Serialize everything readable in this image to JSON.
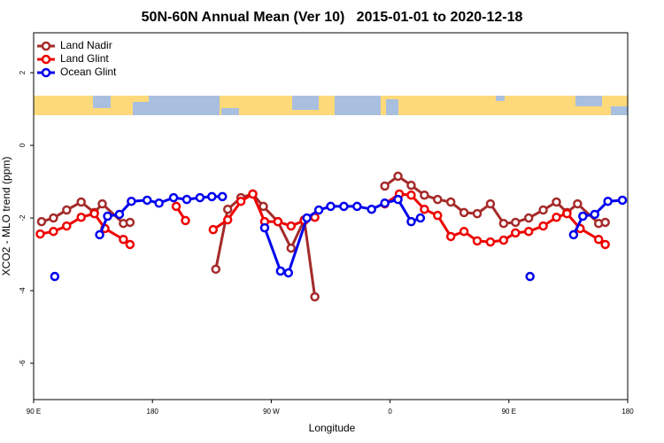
{
  "chart_data": {
    "type": "line",
    "title": "50N-60N Annual Mean (Ver 10)   2015-01-01 to 2020-12-18",
    "x_label": "Longitude",
    "y_label": "XCO2 - MLO trend (ppm)",
    "xlim": [
      90,
      540
    ],
    "ylim": [
      -7,
      3.1
    ],
    "xticks": [
      {
        "value": 90,
        "label": "90 E"
      },
      {
        "value": 180,
        "label": "180"
      },
      {
        "value": 270,
        "label": "90 W"
      },
      {
        "value": 360,
        "label": "0"
      },
      {
        "value": 450,
        "label": "90 E"
      },
      {
        "value": 540,
        "label": "180"
      }
    ],
    "yticks": [
      2,
      0,
      -2,
      -4,
      -6
    ],
    "legend": "top-left",
    "series": [
      {
        "name": "Land Nadir",
        "color": "#a52a2a",
        "x": [
          96,
          105,
          115,
          126,
          136,
          142,
          158,
          163,
          null,
          228,
          237,
          247,
          256,
          264,
          275,
          285,
          295,
          303,
          null,
          356,
          366,
          376,
          386,
          396,
          406,
          416,
          426,
          436,
          446,
          455,
          465,
          476,
          486,
          494,
          502,
          518,
          523
        ],
        "values": [
          -2.1,
          -2.0,
          -1.78,
          -1.56,
          -1.85,
          -1.61,
          -2.15,
          -2.12,
          null,
          -3.41,
          -1.76,
          -1.44,
          -1.34,
          -1.68,
          -2.1,
          -2.83,
          -2.05,
          -4.17,
          null,
          -1.12,
          -0.85,
          -1.1,
          -1.37,
          -1.49,
          -1.56,
          -1.85,
          -1.88,
          -1.61,
          -2.15,
          -2.12,
          -2.0,
          -1.78,
          -1.56,
          -1.85,
          -1.61,
          -2.15,
          -2.12
        ]
      },
      {
        "name": "Land Glint",
        "color": "#ee0000",
        "x": [
          95,
          105,
          115,
          126,
          136,
          144,
          158,
          163,
          null,
          198,
          205,
          null,
          226,
          237,
          247,
          256,
          265,
          275,
          285,
          295,
          303,
          null,
          356,
          367,
          376,
          386,
          396,
          406,
          416,
          426,
          436,
          446,
          455,
          465,
          476,
          486,
          494,
          504,
          518,
          523
        ],
        "values": [
          -2.44,
          -2.37,
          -2.22,
          -1.98,
          -1.88,
          -2.29,
          -2.59,
          -2.73,
          null,
          -1.68,
          -2.07,
          null,
          -2.32,
          -2.05,
          -1.54,
          -1.34,
          -2.1,
          -2.1,
          -2.22,
          -2.07,
          -1.98,
          null,
          -1.61,
          -1.34,
          -1.37,
          -1.76,
          -1.93,
          -2.51,
          -2.37,
          -2.63,
          -2.66,
          -2.61,
          -2.41,
          -2.37,
          -2.22,
          -1.98,
          -1.88,
          -2.29,
          -2.59,
          -2.73
        ]
      },
      {
        "name": "Ocean Glint",
        "color": "#0000ee",
        "x": [
          106,
          null,
          140,
          146,
          155,
          164,
          176,
          185,
          196,
          206,
          216,
          225,
          233,
          null,
          265,
          277,
          283,
          297,
          306,
          315,
          325,
          335,
          346,
          356,
          366,
          376,
          383,
          null,
          466,
          null,
          499,
          506,
          515,
          525,
          536
        ],
        "values": [
          -3.61,
          null,
          -2.46,
          -1.95,
          -1.9,
          -1.54,
          -1.51,
          -1.59,
          -1.44,
          -1.49,
          -1.44,
          -1.41,
          -1.41,
          null,
          -2.27,
          -3.46,
          -3.51,
          -2.0,
          -1.78,
          -1.68,
          -1.68,
          -1.68,
          -1.76,
          -1.59,
          -1.49,
          -2.1,
          -2.0,
          null,
          -3.61,
          null,
          -2.46,
          -1.95,
          -1.9,
          -1.54,
          -1.51
        ]
      }
    ]
  }
}
